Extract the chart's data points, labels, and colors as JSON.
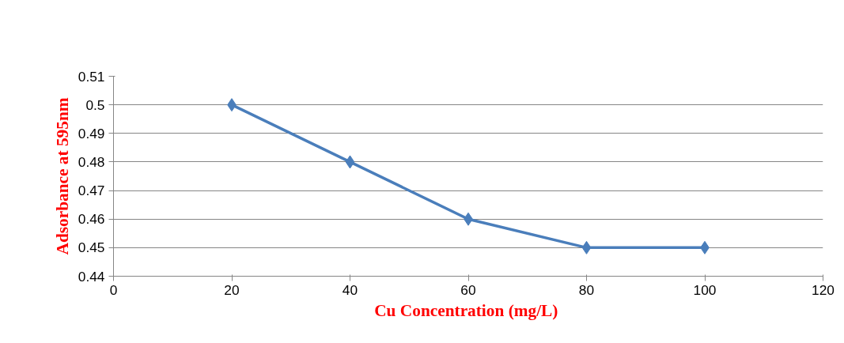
{
  "chart_data": {
    "type": "line",
    "xlabel": "Cu Concentration  (mg/L)",
    "ylabel": "Adsorbance at 595nm",
    "x": [
      20,
      40,
      60,
      80,
      100
    ],
    "series": [
      {
        "color": "#4a7ebb",
        "values": [
          0.5,
          0.48,
          0.46,
          0.45,
          0.45
        ]
      }
    ],
    "xlim": [
      0,
      120
    ],
    "xticks": [
      0,
      20,
      40,
      60,
      80,
      100,
      120
    ],
    "ylim": [
      0.44,
      0.51
    ],
    "yticks": [
      0.44,
      0.45,
      0.46,
      0.47,
      0.48,
      0.49,
      0.5,
      0.51
    ],
    "grid": "y",
    "marker": "diamond",
    "line_style": "solid"
  }
}
